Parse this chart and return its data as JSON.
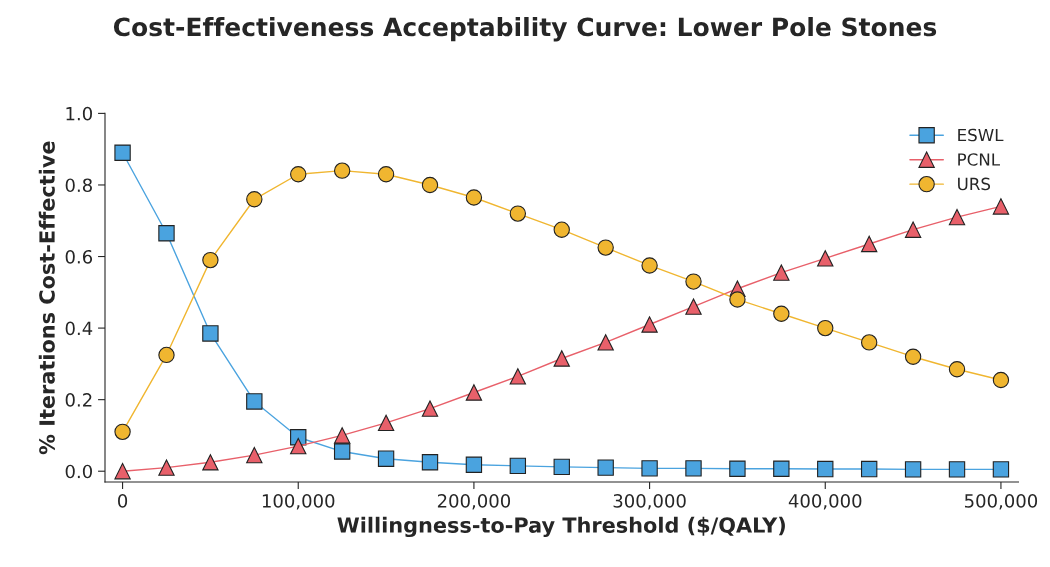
{
  "chart_data": {
    "type": "line",
    "title": "Cost-Effectiveness Acceptability Curve: Lower Pole Stones",
    "xlabel": "Willingness-to-Pay Threshold ($/QALY)",
    "ylabel": "% Iterations Cost-Effective",
    "x": [
      0,
      25000,
      50000,
      75000,
      100000,
      125000,
      150000,
      175000,
      200000,
      225000,
      250000,
      275000,
      300000,
      325000,
      350000,
      375000,
      400000,
      425000,
      450000,
      475000,
      500000
    ],
    "series": [
      {
        "name": "ESWL",
        "color": "#4aa3df",
        "marker": "square",
        "values": [
          0.89,
          0.665,
          0.385,
          0.195,
          0.095,
          0.055,
          0.035,
          0.025,
          0.018,
          0.015,
          0.012,
          0.01,
          0.008,
          0.008,
          0.007,
          0.007,
          0.006,
          0.006,
          0.005,
          0.005,
          0.005
        ]
      },
      {
        "name": "PCNL",
        "color": "#e8606a",
        "marker": "triangle",
        "values": [
          0,
          0.01,
          0.025,
          0.045,
          0.07,
          0.1,
          0.135,
          0.175,
          0.22,
          0.265,
          0.315,
          0.36,
          0.41,
          0.46,
          0.51,
          0.555,
          0.595,
          0.635,
          0.675,
          0.71,
          0.74
        ]
      },
      {
        "name": "URS",
        "color": "#f0b630",
        "marker": "circle",
        "values": [
          0.11,
          0.325,
          0.59,
          0.76,
          0.83,
          0.84,
          0.83,
          0.8,
          0.765,
          0.72,
          0.675,
          0.625,
          0.575,
          0.53,
          0.48,
          0.44,
          0.4,
          0.36,
          0.32,
          0.285,
          0.255
        ]
      }
    ],
    "xlim": [
      -10000,
      510000
    ],
    "xticks": [
      {
        "value": 0,
        "label": "0"
      },
      {
        "value": 100000,
        "label": "100,000"
      },
      {
        "value": 200000,
        "label": "200,000"
      },
      {
        "value": 300000,
        "label": "300,000"
      },
      {
        "value": 400000,
        "label": "400,000"
      },
      {
        "value": 500000,
        "label": "500,000"
      }
    ],
    "ylim": [
      -0.03,
      1.0
    ],
    "yticks": [
      {
        "value": 0,
        "label": "0.0"
      },
      {
        "value": 0.2,
        "label": "0.2"
      },
      {
        "value": 0.4,
        "label": "0.4"
      },
      {
        "value": 0.6,
        "label": "0.6"
      },
      {
        "value": 0.8,
        "label": "0.8"
      },
      {
        "value": 1.0,
        "label": "1.0"
      }
    ],
    "grid": false,
    "legend": "top right",
    "line_style": "solid"
  }
}
